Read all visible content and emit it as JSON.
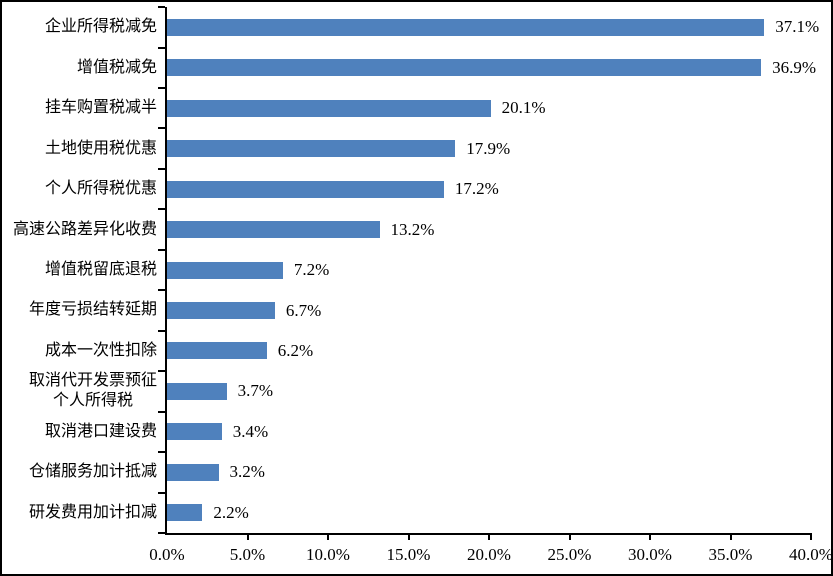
{
  "chart_data": {
    "type": "bar",
    "orientation": "horizontal",
    "title": "",
    "xlabel": "",
    "ylabel": "",
    "categories": [
      "企业所得税减免",
      "增值税减免",
      "挂车购置税减半",
      "土地使用税优惠",
      "个人所得税优惠",
      "高速公路差异化收费",
      "增值税留底退税",
      "年度亏损结转延期",
      "成本一次性扣除",
      "取消代开发票预征\n个人所得税",
      "取消港口建设费",
      "仓储服务加计抵减",
      "研发费用加计扣减"
    ],
    "values": [
      37.1,
      36.9,
      20.1,
      17.9,
      17.2,
      13.2,
      7.2,
      6.7,
      6.2,
      3.7,
      3.4,
      3.2,
      2.2
    ],
    "value_labels": [
      "37.1%",
      "36.9%",
      "20.1%",
      "17.9%",
      "17.2%",
      "13.2%",
      "7.2%",
      "6.7%",
      "6.2%",
      "3.7%",
      "3.4%",
      "3.2%",
      "2.2%"
    ],
    "xlim": [
      0,
      40
    ],
    "x_tick_step": 5,
    "x_tick_labels": [
      "0.0%",
      "5.0%",
      "10.0%",
      "15.0%",
      "20.0%",
      "25.0%",
      "30.0%",
      "35.0%",
      "40.0%"
    ],
    "grid": false,
    "legend": false,
    "data_labels": true,
    "bar_color": "#4F81BD",
    "axis_color": "#000000",
    "text_color": "#000000",
    "background_color": "#FFFFFF"
  }
}
